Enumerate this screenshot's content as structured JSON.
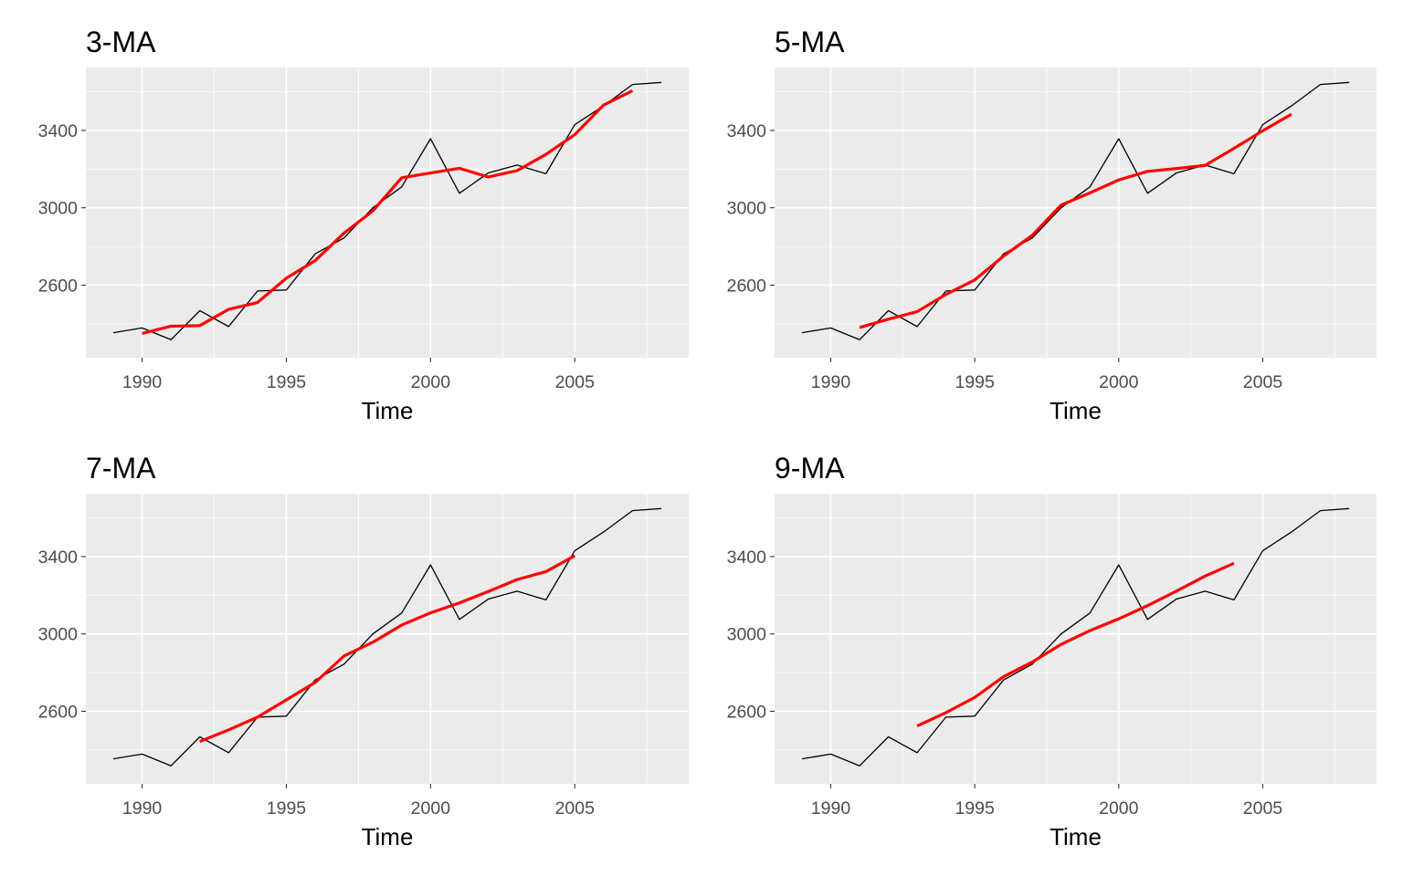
{
  "chart_data": [
    {
      "type": "line",
      "title": "3-MA",
      "xlabel": "Time",
      "ylabel": "",
      "xlim": [
        1988.05,
        2008.95
      ],
      "ylim": [
        2225,
        3725
      ],
      "xticks": [
        1990,
        1995,
        2000,
        2005
      ],
      "yticks": [
        2600,
        3000,
        3400
      ],
      "grid": true,
      "legend": "none",
      "series": [
        {
          "role": "data",
          "color": "#000000",
          "x": [
            1989,
            1990,
            1991,
            1992,
            1993,
            1994,
            1995,
            1996,
            1997,
            1998,
            1999,
            2000,
            2001,
            2002,
            2003,
            2004,
            2005,
            2006,
            2007,
            2008
          ],
          "y": [
            2354,
            2379,
            2318,
            2468,
            2386,
            2570,
            2575,
            2762,
            2844,
            3000,
            3108,
            3357,
            3075,
            3180,
            3221,
            3176,
            3430,
            3527,
            3637,
            3648
          ]
        },
        {
          "role": "moving-average",
          "color": "#ff0000",
          "x": [
            1990,
            1991,
            1992,
            1993,
            1994,
            1995,
            1996,
            1997,
            1998,
            1999,
            2000,
            2001,
            2002,
            2003,
            2004,
            2005,
            2006,
            2007
          ],
          "y": [
            2350,
            2388,
            2391,
            2475,
            2510,
            2636,
            2727,
            2869,
            2984,
            3155,
            3180,
            3204,
            3159,
            3192,
            3276,
            3378,
            3531,
            3605
          ]
        }
      ]
    },
    {
      "type": "line",
      "title": "5-MA",
      "xlabel": "Time",
      "ylabel": "",
      "xlim": [
        1988.05,
        2008.95
      ],
      "ylim": [
        2225,
        3725
      ],
      "xticks": [
        1990,
        1995,
        2000,
        2005
      ],
      "yticks": [
        2600,
        3000,
        3400
      ],
      "grid": true,
      "legend": "none",
      "series": [
        {
          "role": "data",
          "color": "#000000",
          "x": [
            1989,
            1990,
            1991,
            1992,
            1993,
            1994,
            1995,
            1996,
            1997,
            1998,
            1999,
            2000,
            2001,
            2002,
            2003,
            2004,
            2005,
            2006,
            2007,
            2008
          ],
          "y": [
            2354,
            2379,
            2318,
            2468,
            2386,
            2570,
            2575,
            2762,
            2844,
            3000,
            3108,
            3357,
            3075,
            3180,
            3221,
            3176,
            3430,
            3527,
            3637,
            3648
          ]
        },
        {
          "role": "moving-average",
          "color": "#ff0000",
          "x": [
            1991,
            1992,
            1993,
            1994,
            1995,
            1996,
            1997,
            1998,
            1999,
            2000,
            2001,
            2002,
            2003,
            2004,
            2005,
            2006
          ],
          "y": [
            2381,
            2424,
            2463,
            2552,
            2627,
            2750,
            2858,
            3014,
            3077,
            3144,
            3188,
            3203,
            3219,
            3307,
            3398,
            3484
          ]
        }
      ]
    },
    {
      "type": "line",
      "title": "7-MA",
      "xlabel": "Time",
      "ylabel": "",
      "xlim": [
        1988.05,
        2008.95
      ],
      "ylim": [
        2225,
        3725
      ],
      "xticks": [
        1990,
        1995,
        2000,
        2005
      ],
      "yticks": [
        2600,
        3000,
        3400
      ],
      "grid": true,
      "legend": "none",
      "series": [
        {
          "role": "data",
          "color": "#000000",
          "x": [
            1989,
            1990,
            1991,
            1992,
            1993,
            1994,
            1995,
            1996,
            1997,
            1998,
            1999,
            2000,
            2001,
            2002,
            2003,
            2004,
            2005,
            2006,
            2007,
            2008
          ],
          "y": [
            2354,
            2379,
            2318,
            2468,
            2386,
            2570,
            2575,
            2762,
            2844,
            3000,
            3108,
            3357,
            3075,
            3180,
            3221,
            3176,
            3430,
            3527,
            3637,
            3648
          ]
        },
        {
          "role": "moving-average",
          "color": "#ff0000",
          "x": [
            1992,
            1993,
            1994,
            1995,
            1996,
            1997,
            1998,
            1999,
            2000,
            2001,
            2002,
            2003,
            2004,
            2005
          ],
          "y": [
            2444,
            2504,
            2570,
            2659,
            2749,
            2886,
            2957,
            3046,
            3109,
            3160,
            3219,
            3281,
            3322,
            3404
          ]
        }
      ]
    },
    {
      "type": "line",
      "title": "9-MA",
      "xlabel": "Time",
      "ylabel": "",
      "xlim": [
        1988.05,
        2008.95
      ],
      "ylim": [
        2225,
        3725
      ],
      "xticks": [
        1990,
        1995,
        2000,
        2005
      ],
      "yticks": [
        2600,
        3000,
        3400
      ],
      "grid": true,
      "legend": "none",
      "series": [
        {
          "role": "data",
          "color": "#000000",
          "x": [
            1989,
            1990,
            1991,
            1992,
            1993,
            1994,
            1995,
            1996,
            1997,
            1998,
            1999,
            2000,
            2001,
            2002,
            2003,
            2004,
            2005,
            2006,
            2007,
            2008
          ],
          "y": [
            2354,
            2379,
            2318,
            2468,
            2386,
            2570,
            2575,
            2762,
            2844,
            3000,
            3108,
            3357,
            3075,
            3180,
            3221,
            3176,
            3430,
            3527,
            3637,
            3648
          ]
        },
        {
          "role": "moving-average",
          "color": "#ff0000",
          "x": [
            1993,
            1994,
            1995,
            1996,
            1997,
            1998,
            1999,
            2000,
            2001,
            2002,
            2003,
            2004
          ],
          "y": [
            2524,
            2593,
            2672,
            2779,
            2855,
            2946,
            3017,
            3078,
            3146,
            3221,
            3299,
            3365
          ]
        }
      ]
    }
  ],
  "colors": {
    "panel_background": "#ebebeb",
    "gridline": "#ffffff",
    "data_line": "#000000",
    "moving_average_line": "#ff0000",
    "tick_text": "#4d4d4d"
  }
}
